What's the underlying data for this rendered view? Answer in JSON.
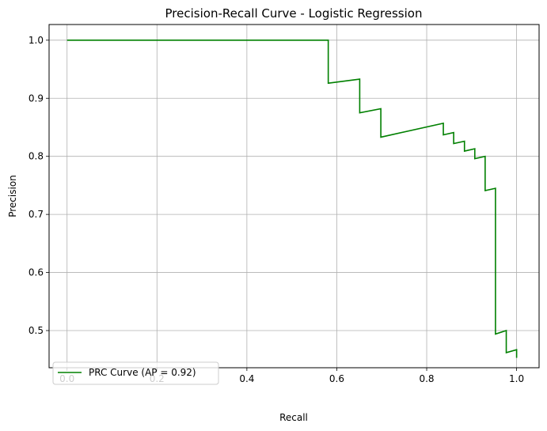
{
  "chart_data": {
    "type": "line",
    "title": "Precision-Recall Curve - Logistic Regression",
    "xlabel": "Recall",
    "ylabel": "Precision",
    "xlim": [
      -0.04,
      1.05
    ],
    "ylim": [
      0.436,
      1.027
    ],
    "xticks": [
      0.0,
      0.2,
      0.4,
      0.6,
      0.8,
      1.0
    ],
    "xtick_labels": [
      "0.0",
      "0.2",
      "0.4",
      "0.6",
      "0.8",
      "1.0"
    ],
    "yticks": [
      0.5,
      0.6,
      0.7,
      0.8,
      0.9,
      1.0
    ],
    "ytick_labels": [
      "0.5",
      "0.6",
      "0.7",
      "0.8",
      "0.9",
      "1.0"
    ],
    "grid": true,
    "legend_position": "lower-left",
    "series": [
      {
        "name": "PRC Curve (AP = 0.92)",
        "color": "#008000",
        "x": [
          0.0,
          0.581,
          0.581,
          0.651,
          0.651,
          0.698,
          0.698,
          0.837,
          0.837,
          0.86,
          0.86,
          0.884,
          0.884,
          0.907,
          0.907,
          0.93,
          0.93,
          0.953,
          0.953,
          0.977,
          0.977,
          1.0,
          1.0
        ],
        "y": [
          1.0,
          1.0,
          0.926,
          0.933,
          0.875,
          0.882,
          0.833,
          0.857,
          0.837,
          0.841,
          0.822,
          0.826,
          0.809,
          0.813,
          0.796,
          0.8,
          0.741,
          0.745,
          0.494,
          0.5,
          0.462,
          0.467,
          0.453
        ]
      }
    ]
  }
}
